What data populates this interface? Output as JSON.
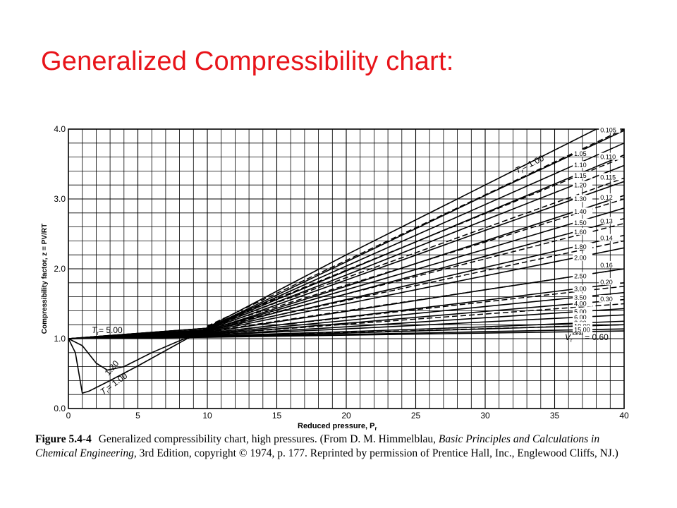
{
  "slide": {
    "title": "Generalized Compressibility chart:"
  },
  "caption": {
    "label": "Figure 5.4-4",
    "text_1": "Generalized compressibility chart, high pressures. (From D. M. Himmelblau, ",
    "italic_1": "Basic Principles and Calculations in Chemical Engineering",
    "text_2": ", 3rd Edition, copyright © 1974, p. 177. Reprinted by permission of Prentice Hall, Inc., Englewood Cliffs, NJ.)"
  },
  "chart_data": {
    "type": "line",
    "xlabel": "Reduced pressure, P",
    "xlabel_sub": "r",
    "ylabel": "Compressibility factor, z = PV/RT",
    "xlim": [
      0,
      40
    ],
    "ylim": [
      0,
      4.0
    ],
    "x_ticks": [
      "0",
      "5",
      "10",
      "15",
      "20",
      "25",
      "30",
      "35",
      "40"
    ],
    "y_ticks": [
      "0.0",
      "1.0",
      "2.0",
      "3.0",
      "4.0"
    ],
    "grid": true,
    "Tr_series": [
      {
        "label": "T = 1.00",
        "points": [
          [
            0,
            1.0
          ],
          [
            0.5,
            0.8
          ],
          [
            1.0,
            0.22
          ],
          [
            1.5,
            0.25
          ],
          [
            3,
            0.4
          ],
          [
            5,
            0.61
          ],
          [
            10,
            1.16
          ],
          [
            20,
            2.2
          ],
          [
            30,
            3.2
          ],
          [
            40,
            4.2
          ]
        ]
      },
      {
        "label": "1.05",
        "points": [
          [
            0,
            1.0
          ],
          [
            10,
            1.15
          ],
          [
            20,
            2.1
          ],
          [
            30,
            3.05
          ],
          [
            40,
            3.98
          ]
        ]
      },
      {
        "label": "1.10",
        "points": [
          [
            0,
            1.0
          ],
          [
            10,
            1.15
          ],
          [
            20,
            2.04
          ],
          [
            30,
            2.92
          ],
          [
            40,
            3.8
          ]
        ]
      },
      {
        "label": "1.15",
        "points": [
          [
            0,
            1.0
          ],
          [
            10,
            1.15
          ],
          [
            20,
            1.97
          ],
          [
            30,
            2.8
          ],
          [
            40,
            3.63
          ]
        ]
      },
      {
        "label": "1.20",
        "points": [
          [
            0,
            1.0
          ],
          [
            1,
            0.9
          ],
          [
            2,
            0.65
          ],
          [
            2.8,
            0.55
          ],
          [
            4,
            0.6
          ],
          [
            6,
            0.8
          ],
          [
            10,
            1.14
          ],
          [
            20,
            1.91
          ],
          [
            30,
            2.7
          ],
          [
            40,
            3.48
          ]
        ]
      },
      {
        "label": "1.30",
        "points": [
          [
            0,
            1.0
          ],
          [
            10,
            1.13
          ],
          [
            20,
            1.84
          ],
          [
            30,
            2.55
          ],
          [
            40,
            3.25
          ]
        ]
      },
      {
        "label": "1.40",
        "points": [
          [
            0,
            1.0
          ],
          [
            10,
            1.12
          ],
          [
            20,
            1.75
          ],
          [
            30,
            2.4
          ],
          [
            40,
            3.05
          ]
        ]
      },
      {
        "label": "1.50",
        "points": [
          [
            0,
            1.0
          ],
          [
            10,
            1.12
          ],
          [
            20,
            1.7
          ],
          [
            30,
            2.28
          ],
          [
            40,
            2.87
          ]
        ]
      },
      {
        "label": "1.60",
        "points": [
          [
            0,
            1.0
          ],
          [
            10,
            1.11
          ],
          [
            20,
            1.64
          ],
          [
            30,
            2.18
          ],
          [
            40,
            2.72
          ]
        ]
      },
      {
        "label": "1.80",
        "points": [
          [
            0,
            1.0
          ],
          [
            10,
            1.11
          ],
          [
            20,
            1.56
          ],
          [
            30,
            2.02
          ],
          [
            40,
            2.48
          ]
        ]
      },
      {
        "label": "2.00",
        "points": [
          [
            0,
            1.0
          ],
          [
            10,
            1.1
          ],
          [
            20,
            1.5
          ],
          [
            30,
            1.9
          ],
          [
            40,
            2.3
          ]
        ]
      },
      {
        "label": "2.50",
        "points": [
          [
            0,
            1.0
          ],
          [
            10,
            1.09
          ],
          [
            20,
            1.39
          ],
          [
            30,
            1.7
          ],
          [
            40,
            2.0
          ]
        ]
      },
      {
        "label": "3.00",
        "points": [
          [
            0,
            1.0
          ],
          [
            10,
            1.08
          ],
          [
            20,
            1.31
          ],
          [
            30,
            1.55
          ],
          [
            40,
            1.8
          ]
        ]
      },
      {
        "label": "3.50",
        "points": [
          [
            0,
            1.0
          ],
          [
            10,
            1.07
          ],
          [
            20,
            1.26
          ],
          [
            30,
            1.46
          ],
          [
            40,
            1.66
          ]
        ]
      },
      {
        "label": "4.00",
        "points": [
          [
            0,
            1.0
          ],
          [
            10,
            1.06
          ],
          [
            20,
            1.22
          ],
          [
            30,
            1.39
          ],
          [
            40,
            1.56
          ]
        ]
      },
      {
        "label": "5.00",
        "points": [
          [
            0,
            1.0
          ],
          [
            10,
            1.05
          ],
          [
            20,
            1.17
          ],
          [
            30,
            1.3
          ],
          [
            40,
            1.43
          ]
        ]
      },
      {
        "label": "6.00",
        "points": [
          [
            0,
            1.0
          ],
          [
            10,
            1.05
          ],
          [
            20,
            1.14
          ],
          [
            30,
            1.24
          ],
          [
            40,
            1.34
          ]
        ]
      },
      {
        "label": "8.00",
        "points": [
          [
            0,
            1.0
          ],
          [
            10,
            1.04
          ],
          [
            20,
            1.1
          ],
          [
            30,
            1.17
          ],
          [
            40,
            1.25
          ]
        ]
      },
      {
        "label": "10.00",
        "points": [
          [
            0,
            1.0
          ],
          [
            10,
            1.03
          ],
          [
            20,
            1.08
          ],
          [
            30,
            1.14
          ],
          [
            40,
            1.2
          ]
        ]
      },
      {
        "label": "15.00",
        "points": [
          [
            0,
            1.0
          ],
          [
            10,
            1.03
          ],
          [
            20,
            1.06
          ],
          [
            30,
            1.1
          ],
          [
            40,
            1.14
          ]
        ]
      },
      {
        "label": "T = 5.00",
        "points": [
          [
            0,
            1.0
          ],
          [
            10,
            1.02
          ],
          [
            20,
            1.05
          ],
          [
            30,
            1.08
          ],
          [
            40,
            1.11
          ]
        ]
      }
    ],
    "Vr_ideal_series": [
      {
        "label": "0.105",
        "points": [
          [
            10,
            1.18
          ],
          [
            40,
            4.0
          ]
        ]
      },
      {
        "label": "0.110",
        "points": [
          [
            10,
            1.17
          ],
          [
            40,
            3.6
          ]
        ]
      },
      {
        "label": "0.115",
        "points": [
          [
            10,
            1.16
          ],
          [
            40,
            3.3
          ]
        ]
      },
      {
        "label": "0.12",
        "points": [
          [
            10,
            1.15
          ],
          [
            40,
            3.0
          ]
        ]
      },
      {
        "label": "0.13",
        "points": [
          [
            10,
            1.13
          ],
          [
            40,
            2.65
          ]
        ]
      },
      {
        "label": "0.14",
        "points": [
          [
            10,
            1.12
          ],
          [
            40,
            2.4
          ]
        ]
      },
      {
        "label": "0.16",
        "points": [
          [
            10,
            1.1
          ],
          [
            40,
            2.0
          ]
        ]
      },
      {
        "label": "0.20",
        "points": [
          [
            10,
            1.08
          ],
          [
            40,
            1.75
          ]
        ]
      },
      {
        "label": "0.30",
        "points": [
          [
            10,
            1.06
          ],
          [
            40,
            1.5
          ]
        ]
      },
      {
        "label": "0.60",
        "points": [
          [
            10,
            1.03
          ],
          [
            40,
            1.2
          ]
        ]
      }
    ],
    "annotations": {
      "tr_top": "T",
      "tr_top_sub": "r",
      "tr_top_value": "= 1.00",
      "tr_mid": "T",
      "tr_mid_sub": "r",
      "tr_mid_value": "= 5.00",
      "tr_low_120": "1.20",
      "tr_low_100": "T",
      "tr_low_100_sub": "r",
      "tr_low_100_value": "= 1.00",
      "vr_ideal": "V",
      "vr_ideal_sub": "r",
      "vr_ideal_sup": "ideal",
      "vr_ideal_value": "= 0.60"
    }
  }
}
